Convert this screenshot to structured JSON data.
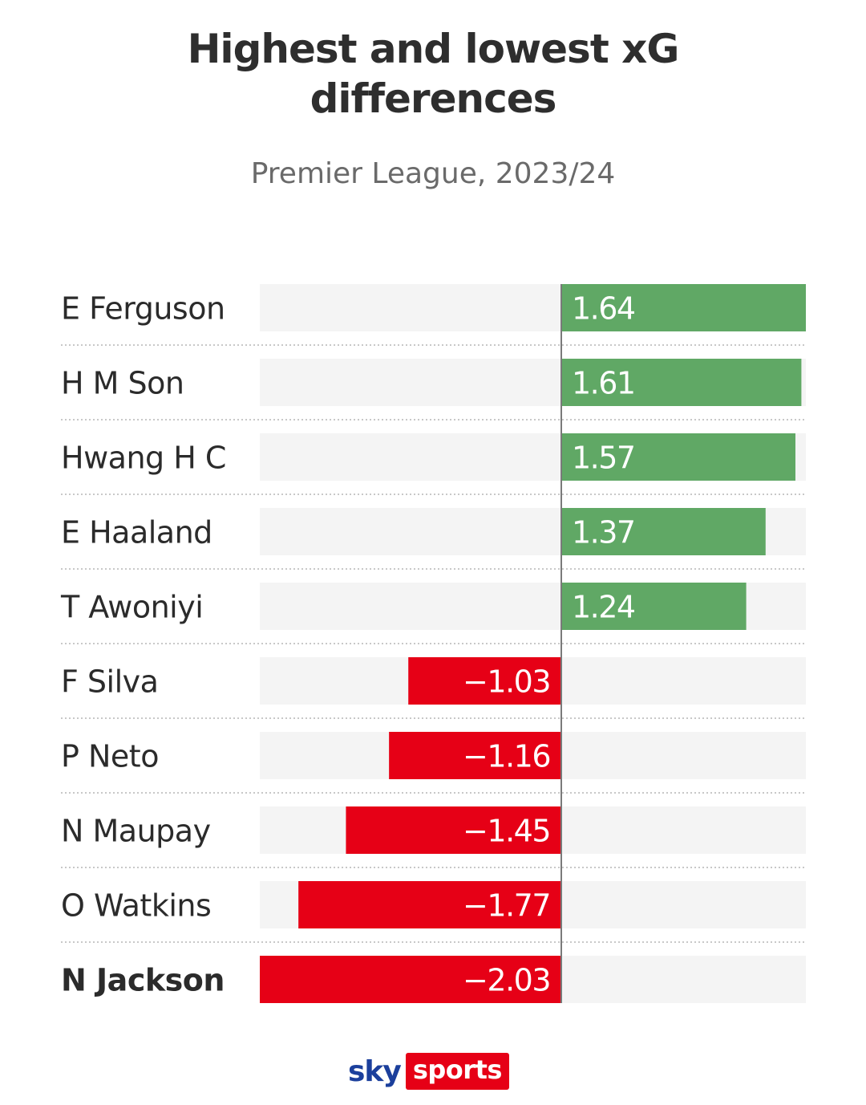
{
  "title": "Highest and lowest xG differences",
  "subtitle": "Premier League, 2023/24",
  "brand": {
    "sky": "sky",
    "sports": "sports"
  },
  "colors": {
    "positive": "#60a865",
    "negative": "#e60016",
    "track": "#f4f4f4",
    "axis": "#7a7a7a",
    "label": "#2b2b2b"
  },
  "chart_data": {
    "type": "bar",
    "orientation": "horizontal",
    "title": "Highest and lowest xG differences",
    "subtitle": "Premier League, 2023/24",
    "categories": [
      "E Ferguson",
      "H M Son",
      "Hwang H C",
      "E Haaland",
      "T Awoniyi",
      "F Silva",
      "P Neto",
      "N Maupay",
      "O Watkins",
      "N Jackson"
    ],
    "values": [
      1.64,
      1.61,
      1.57,
      1.37,
      1.24,
      -1.03,
      -1.16,
      -1.45,
      -1.77,
      -2.03
    ],
    "value_labels": [
      "1.64",
      "1.61",
      "1.57",
      "1.37",
      "1.24",
      "−1.03",
      "−1.16",
      "−1.45",
      "−1.77",
      "−2.03"
    ],
    "bold_categories": [
      "N Jackson"
    ],
    "xlim": [
      -2.03,
      1.64
    ],
    "xlabel": "",
    "ylabel": "",
    "grid": false
  }
}
